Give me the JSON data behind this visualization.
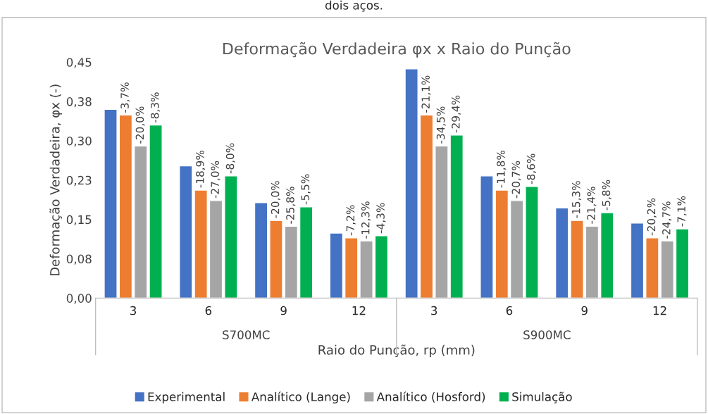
{
  "chart_data": {
    "type": "bar",
    "title": "Deformação Verdadeira φx x Raio do Punção",
    "xlabel": "Raio do Punção, rp (mm)",
    "ylabel": "Deformação Verdadeira, φx (-)",
    "categories": [
      "3",
      "6",
      "9",
      "12",
      "3",
      "6",
      "9",
      "12"
    ],
    "series": [
      {
        "name": "Experimental",
        "color": "#4472c4",
        "values": [
          0.36,
          0.252,
          0.182,
          0.124,
          0.437,
          0.233,
          0.172,
          0.143
        ]
      },
      {
        "name": "Analítico (Lange)",
        "color": "#ed7d31",
        "values": [
          0.349,
          0.206,
          0.148,
          0.115,
          0.349,
          0.206,
          0.148,
          0.115
        ]
      },
      {
        "name": "Analítico (Hosford)",
        "color": "#a5a5a5",
        "values": [
          0.29,
          0.186,
          0.137,
          0.109,
          0.29,
          0.186,
          0.137,
          0.109
        ]
      },
      {
        "name": "Simulação",
        "color": "#00b050",
        "values": [
          0.33,
          0.233,
          0.174,
          0.119,
          0.311,
          0.213,
          0.163,
          0.132
        ]
      }
    ],
    "ylim": [
      0,
      0.45
    ],
    "yticks": [
      {
        "value": 0,
        "label": "0,00"
      },
      {
        "value": 0.075,
        "label": "0,08"
      },
      {
        "value": 0.15,
        "label": "0,15"
      },
      {
        "value": 0.225,
        "label": "0,23"
      },
      {
        "value": 0.3,
        "label": "0,30"
      },
      {
        "value": 0.375,
        "label": "0,38"
      },
      {
        "value": 0.45,
        "label": "0,45"
      }
    ],
    "grid": false,
    "legend": "bottom",
    "annotations": [
      "dois aços.",
      "S700MC",
      "S900MC",
      "-3,7%",
      "-18,9%",
      "-20,0%",
      "-7,2%",
      "-21,1%",
      "-11,8%",
      "-15,3%",
      "-20,2%",
      "-20,0%",
      "-27,0%",
      "-25,8%",
      "-12,3%",
      "-34,5%",
      "-20,7%",
      "-21,4%",
      "-24,7%",
      "-8,3%",
      "-8,0%",
      "-5,5%",
      "-4,3%",
      "-29,4%",
      "-8,6%",
      "-5,8%",
      "-7,1%"
    ]
  }
}
